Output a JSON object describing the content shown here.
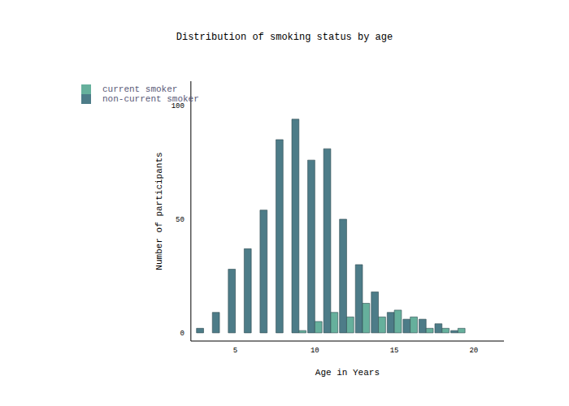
{
  "chart_data": {
    "type": "bar",
    "title": "Distribution of smoking status by age",
    "x_label": "Age in Years",
    "y_label": "Number of participants",
    "x": [
      3,
      4,
      5,
      6,
      7,
      8,
      9,
      10,
      11,
      12,
      13,
      14,
      15,
      16,
      17,
      18,
      19
    ],
    "series": [
      {
        "name": "non-current smoker",
        "color": "#4d7c88",
        "values": [
          2,
          9,
          28,
          37,
          54,
          85,
          94,
          76,
          81,
          50,
          30,
          18,
          9,
          6,
          6,
          4,
          1
        ]
      },
      {
        "name": "current smoker",
        "color": "#66b09c",
        "values": [
          0,
          0,
          0,
          0,
          0,
          0,
          1,
          5,
          9,
          7,
          13,
          7,
          10,
          7,
          2,
          2,
          2
        ]
      }
    ],
    "xlim": [
      2.2,
      21.9
    ],
    "ylim": [
      -3.6,
      110.7
    ],
    "xticks": [
      5,
      10,
      15,
      20
    ],
    "yticks": [
      0,
      50,
      100
    ],
    "legend": "top-left",
    "grid": false
  }
}
